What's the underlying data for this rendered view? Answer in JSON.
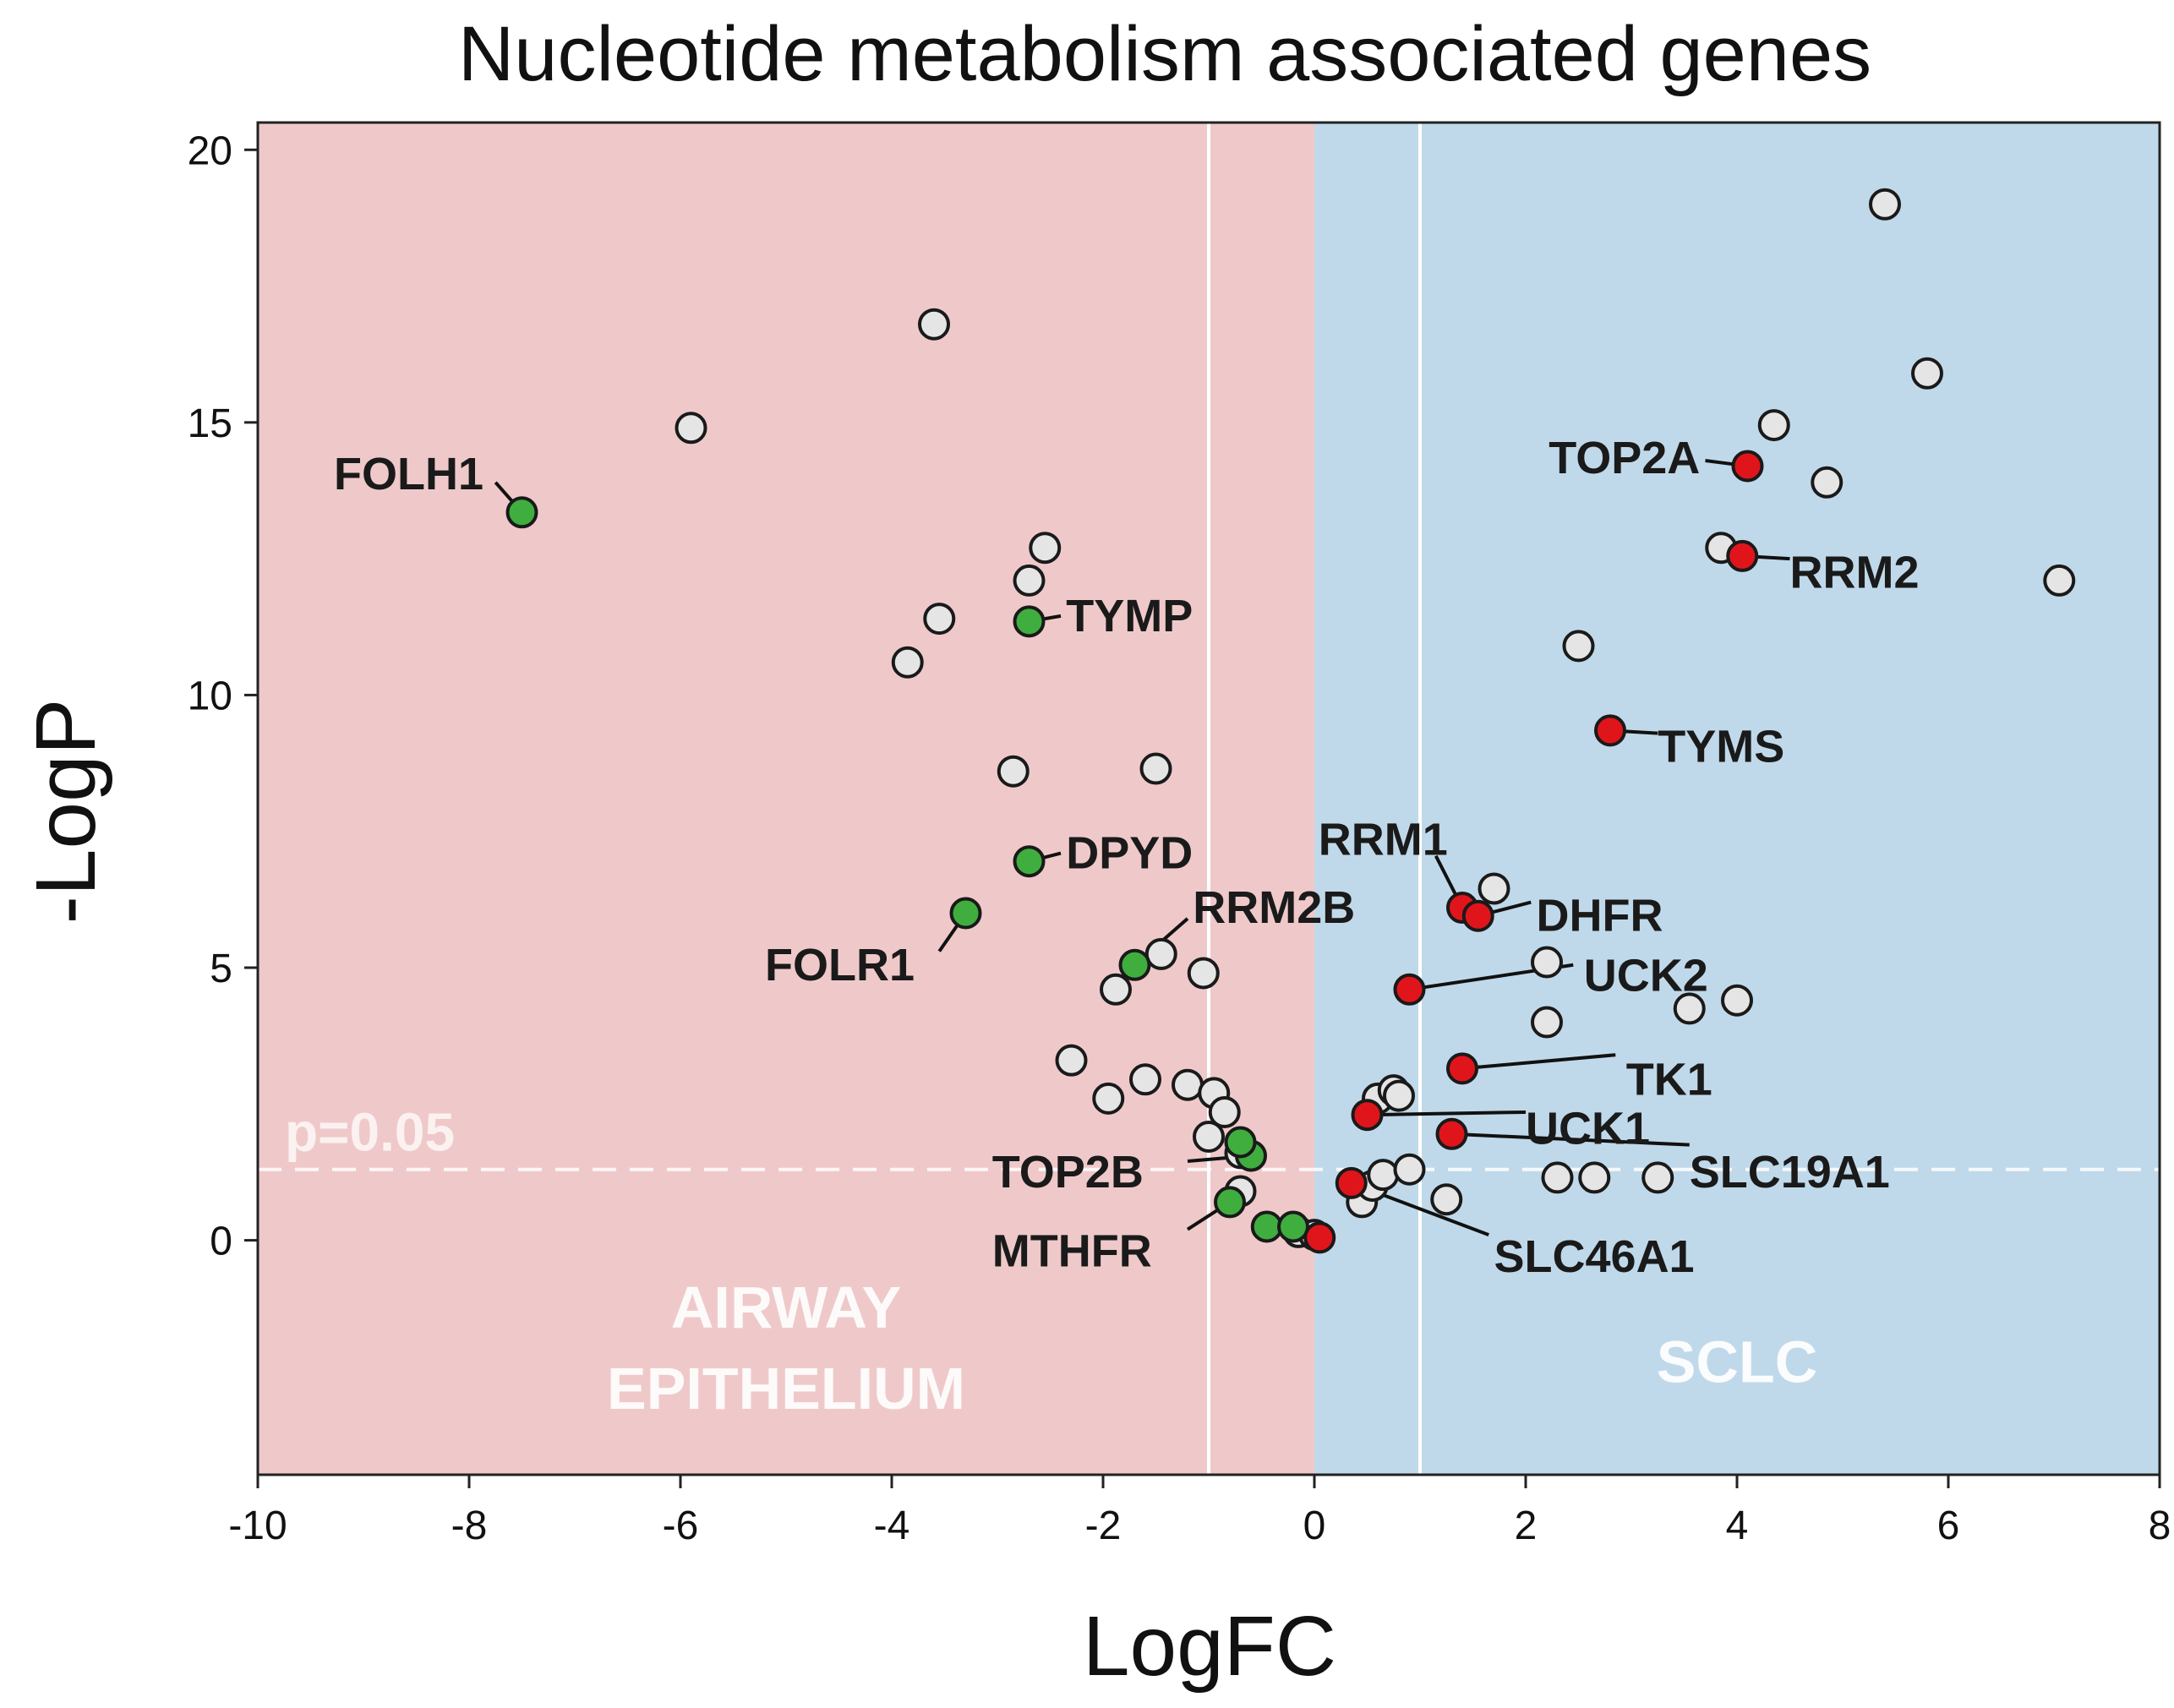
{
  "chart_data": {
    "type": "scatter",
    "title": "Nucleotide metabolism associated genes",
    "xlabel": "LogFC",
    "ylabel": "-LogP",
    "xlim": [
      -10,
      8
    ],
    "ylim": [
      -4.3,
      20.5
    ],
    "xticks": [
      -10,
      -8,
      -6,
      -4,
      -2,
      0,
      2,
      4,
      6,
      8
    ],
    "yticks": [
      0,
      5,
      10,
      15,
      20
    ],
    "grid": false,
    "regions": [
      {
        "label_lines": [
          "AIRWAY",
          "EPITHELIUM"
        ],
        "x_range": [
          -10,
          0
        ],
        "color": "#efc9ca"
      },
      {
        "label_lines": [
          "SCLC"
        ],
        "x_range": [
          0,
          8
        ],
        "color": "#c0d9ea"
      }
    ],
    "vlines": [
      -1,
      1
    ],
    "threshold": {
      "y": 1.3,
      "label": "p=0.05"
    },
    "colors": {
      "down": "#3fae3f",
      "up": "#e0151b",
      "other": "#e5e5e5"
    },
    "series": [
      {
        "group": "other",
        "points": [
          {
            "x": -3.6,
            "y": 16.8
          },
          {
            "x": -5.9,
            "y": 14.9
          },
          {
            "x": -2.55,
            "y": 12.7
          },
          {
            "x": -2.7,
            "y": 12.1
          },
          {
            "x": -3.55,
            "y": 11.4
          },
          {
            "x": -3.85,
            "y": 10.6
          },
          {
            "x": -2.85,
            "y": 8.6
          },
          {
            "x": -1.5,
            "y": 8.65
          },
          {
            "x": -1.45,
            "y": 5.25
          },
          {
            "x": -1.05,
            "y": 4.9
          },
          {
            "x": -1.88,
            "y": 4.6
          },
          {
            "x": -2.3,
            "y": 3.3
          },
          {
            "x": -1.95,
            "y": 2.6
          },
          {
            "x": -1.6,
            "y": 2.95
          },
          {
            "x": -1.2,
            "y": 2.85
          },
          {
            "x": -0.95,
            "y": 2.7
          },
          {
            "x": -0.85,
            "y": 2.35
          },
          {
            "x": -1.0,
            "y": 1.9
          },
          {
            "x": -0.7,
            "y": 1.6
          },
          {
            "x": -0.7,
            "y": 0.9
          },
          {
            "x": -0.15,
            "y": 0.15
          },
          {
            "x": 0.0,
            "y": 0.1
          },
          {
            "x": 0.45,
            "y": 0.7
          },
          {
            "x": 0.55,
            "y": 1.0
          },
          {
            "x": 0.65,
            "y": 1.2
          },
          {
            "x": 0.9,
            "y": 1.3
          },
          {
            "x": 1.25,
            "y": 0.75
          },
          {
            "x": 0.6,
            "y": 2.6
          },
          {
            "x": 0.75,
            "y": 2.75
          },
          {
            "x": 0.8,
            "y": 2.65
          },
          {
            "x": 5.4,
            "y": 19.0
          },
          {
            "x": 5.8,
            "y": 15.9
          },
          {
            "x": 4.35,
            "y": 14.95
          },
          {
            "x": 4.85,
            "y": 13.9
          },
          {
            "x": 3.85,
            "y": 12.7
          },
          {
            "x": 7.05,
            "y": 12.1
          },
          {
            "x": 2.5,
            "y": 10.9
          },
          {
            "x": 1.7,
            "y": 6.45
          },
          {
            "x": 2.2,
            "y": 5.1
          },
          {
            "x": 3.55,
            "y": 4.25
          },
          {
            "x": 4.0,
            "y": 4.4
          },
          {
            "x": 2.2,
            "y": 4.0
          },
          {
            "x": 2.3,
            "y": 1.15
          },
          {
            "x": 2.65,
            "y": 1.15
          },
          {
            "x": 3.25,
            "y": 1.15
          }
        ]
      },
      {
        "group": "down",
        "points": [
          {
            "x": -7.5,
            "y": 13.35,
            "gene": "FOLH1"
          },
          {
            "x": -2.7,
            "y": 11.35,
            "gene": "TYMP"
          },
          {
            "x": -2.7,
            "y": 6.95,
            "gene": "DPYD"
          },
          {
            "x": -3.3,
            "y": 6.0,
            "gene": "FOLR1"
          },
          {
            "x": -1.7,
            "y": 5.05,
            "gene": "RRM2B"
          },
          {
            "x": -0.6,
            "y": 1.55,
            "gene": "TOP2B"
          },
          {
            "x": -0.7,
            "y": 1.8
          },
          {
            "x": -0.8,
            "y": 0.7,
            "gene": "MTHFR"
          },
          {
            "x": -0.45,
            "y": 0.25
          },
          {
            "x": -0.2,
            "y": 0.25
          }
        ]
      },
      {
        "group": "up",
        "points": [
          {
            "x": 4.1,
            "y": 14.2,
            "gene": "TOP2A"
          },
          {
            "x": 4.05,
            "y": 12.55,
            "gene": "RRM2"
          },
          {
            "x": 2.8,
            "y": 9.35,
            "gene": "TYMS"
          },
          {
            "x": 1.4,
            "y": 6.1,
            "gene": "RRM1"
          },
          {
            "x": 1.55,
            "y": 5.95,
            "gene": "DHFR"
          },
          {
            "x": 0.9,
            "y": 4.6,
            "gene": "UCK2"
          },
          {
            "x": 1.4,
            "y": 3.15,
            "gene": "TK1"
          },
          {
            "x": 0.5,
            "y": 2.3,
            "gene": "UCK1"
          },
          {
            "x": 1.3,
            "y": 1.95,
            "gene": "SLC19A1"
          },
          {
            "x": 0.35,
            "y": 1.05,
            "gene": "SLC46A1"
          },
          {
            "x": 0.05,
            "y": 0.05
          }
        ]
      }
    ],
    "annotations": [
      {
        "text": "FOLH1",
        "x": -7.5,
        "y": 13.35,
        "tx": -9.28,
        "ty": 14.05,
        "anchor": "start",
        "lx": -7.75,
        "ly": 13.9
      },
      {
        "text": "TYMP",
        "x": -2.7,
        "y": 11.35,
        "tx": -2.35,
        "ty": 11.45,
        "anchor": "start",
        "lx": -2.4,
        "ly": 11.45
      },
      {
        "text": "DPYD",
        "x": -2.7,
        "y": 6.95,
        "tx": -2.35,
        "ty": 7.1,
        "anchor": "start",
        "lx": -2.4,
        "ly": 7.1
      },
      {
        "text": "FOLR1",
        "x": -3.3,
        "y": 6.0,
        "tx": -5.2,
        "ty": 5.05,
        "anchor": "start",
        "lx": -3.55,
        "ly": 5.3
      },
      {
        "text": "RRM2B",
        "x": -1.7,
        "y": 5.05,
        "tx": -1.15,
        "ty": 6.1,
        "anchor": "start",
        "lx": -1.2,
        "ly": 5.9
      },
      {
        "text": "TOP2B",
        "x": -0.6,
        "y": 1.55,
        "tx": -3.05,
        "ty": 1.25,
        "anchor": "start",
        "lx": -1.2,
        "ly": 1.45
      },
      {
        "text": "MTHFR",
        "x": -0.8,
        "y": 0.7,
        "tx": -3.05,
        "ty": -0.2,
        "anchor": "start",
        "lx": -1.2,
        "ly": 0.2
      },
      {
        "text": "TOP2A",
        "x": 4.1,
        "y": 14.2,
        "tx": 3.65,
        "ty": 14.35,
        "anchor": "end",
        "lx": 3.7,
        "ly": 14.3
      },
      {
        "text": "RRM2",
        "x": 4.05,
        "y": 12.55,
        "tx": 4.5,
        "ty": 12.25,
        "anchor": "start",
        "lx": 4.5,
        "ly": 12.5
      },
      {
        "text": "TYMS",
        "x": 2.8,
        "y": 9.35,
        "tx": 3.25,
        "ty": 9.05,
        "anchor": "start",
        "lx": 3.25,
        "ly": 9.3
      },
      {
        "text": "RRM1",
        "x": 1.4,
        "y": 6.1,
        "tx": 0.65,
        "ty": 7.35,
        "anchor": "middle",
        "lx": 1.15,
        "ly": 7.05
      },
      {
        "text": "DHFR",
        "x": 1.55,
        "y": 5.95,
        "tx": 2.1,
        "ty": 5.95,
        "anchor": "start",
        "lx": 2.05,
        "ly": 6.2
      },
      {
        "text": "UCK2",
        "x": 0.9,
        "y": 4.6,
        "tx": 2.55,
        "ty": 4.85,
        "anchor": "start",
        "lx": 2.45,
        "ly": 5.05
      },
      {
        "text": "TK1",
        "x": 1.4,
        "y": 3.15,
        "tx": 2.95,
        "ty": 2.95,
        "anchor": "start",
        "lx": 2.85,
        "ly": 3.4
      },
      {
        "text": "UCK1",
        "x": 0.5,
        "y": 2.3,
        "tx": 2.0,
        "ty": 2.05,
        "anchor": "start",
        "lx": 2.0,
        "ly": 2.35
      },
      {
        "text": "SLC19A1",
        "x": 1.3,
        "y": 1.95,
        "tx": 3.55,
        "ty": 1.25,
        "anchor": "start",
        "lx": 3.55,
        "ly": 1.75
      },
      {
        "text": "SLC46A1",
        "x": 0.35,
        "y": 1.05,
        "tx": 1.7,
        "ty": -0.3,
        "anchor": "start",
        "lx": 1.65,
        "ly": 0.1
      }
    ]
  }
}
